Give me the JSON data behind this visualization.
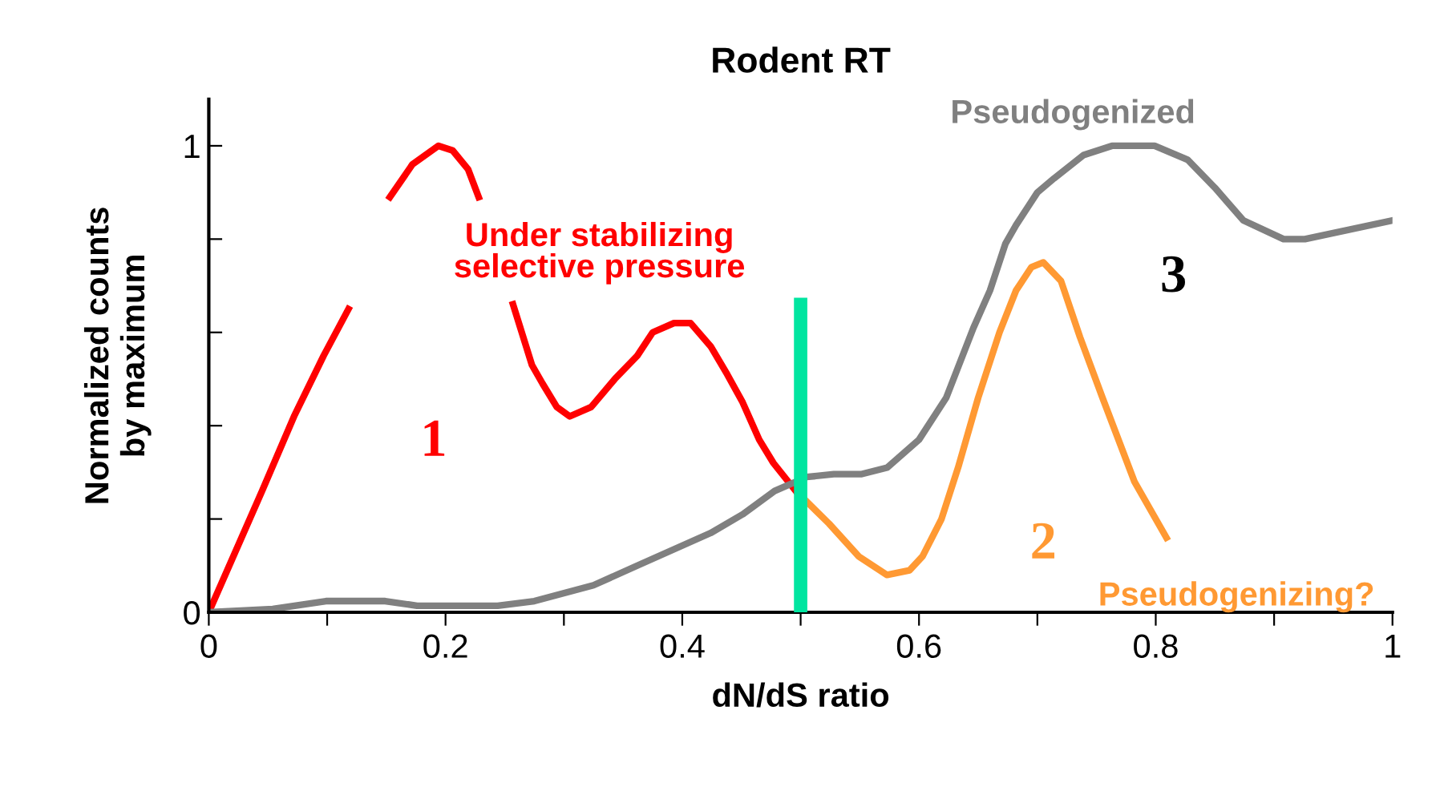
{
  "chart_data": {
    "type": "line",
    "title": "Rodent RT",
    "xlabel": "dN/dS ratio",
    "ylabel": "Normalized counts\nby maximum",
    "xlim": [
      0,
      1
    ],
    "ylim": [
      0,
      1.1
    ],
    "xticks": [
      0,
      {
        "value": 0.1,
        "label": null
      },
      0.2,
      {
        "value": 0.3,
        "label": null
      },
      0.4,
      {
        "value": 0.5,
        "label": null
      },
      0.6,
      {
        "value": 0.7,
        "label": null
      },
      0.8,
      {
        "value": 0.9,
        "label": null
      },
      1
    ],
    "yticks": [
      0,
      {
        "value": 0.2,
        "label": null
      },
      {
        "value": 0.4,
        "label": null
      },
      {
        "value": 0.6,
        "label": null
      },
      {
        "value": 0.8,
        "label": null
      },
      1
    ],
    "grid": false,
    "legend": false,
    "series": [
      {
        "name": "Under stabilizing\nselective pressure",
        "color": "#ff0000",
        "x": [
          0,
          0.045,
          0.072,
          0.097,
          0.118,
          0.135,
          0.153,
          0.172,
          0.194,
          0.206,
          0.219,
          0.228,
          0.24,
          0.257,
          0.273,
          0.282,
          0.294,
          0.305,
          0.323,
          0.343,
          0.362,
          0.375,
          0.393,
          0.407,
          0.424,
          0.438,
          0.451,
          0.465,
          0.477,
          0.499
        ],
        "values": [
          0,
          0.26,
          0.42,
          0.55,
          0.65,
          null,
          0.89,
          0.96,
          1.0,
          0.99,
          0.95,
          0.89,
          null,
          0.66,
          0.53,
          0.49,
          0.44,
          0.42,
          0.44,
          0.5,
          0.55,
          0.6,
          0.62,
          0.62,
          0.57,
          0.51,
          0.45,
          0.37,
          0.32,
          0.25
        ]
      },
      {
        "name": "Pseudogenizing?",
        "color": "#ff9933",
        "x": [
          0.504,
          0.524,
          0.549,
          0.573,
          0.592,
          0.603,
          0.619,
          0.633,
          0.65,
          0.668,
          0.682,
          0.695,
          0.705,
          0.72,
          0.736,
          0.755,
          0.782,
          0.809
        ],
        "values": [
          0.24,
          0.19,
          0.12,
          0.08,
          0.09,
          0.12,
          0.2,
          0.31,
          0.46,
          0.6,
          0.69,
          0.74,
          0.75,
          0.71,
          0.59,
          0.46,
          0.28,
          0.16
        ]
      },
      {
        "name": "Pseudogenized",
        "color": "#808080",
        "x": [
          0,
          0.054,
          0.099,
          0.149,
          0.176,
          0.244,
          0.275,
          0.325,
          0.362,
          0.424,
          0.451,
          0.478,
          0.505,
          0.528,
          0.551,
          0.573,
          0.6,
          0.623,
          0.646,
          0.66,
          0.673,
          0.682,
          0.7,
          0.714,
          0.739,
          0.763,
          0.799,
          0.827,
          0.85,
          0.874,
          0.908,
          0.926,
          1.0
        ],
        "values": [
          0,
          0.007,
          0.024,
          0.024,
          0.014,
          0.014,
          0.024,
          0.058,
          0.1,
          0.17,
          0.21,
          0.26,
          0.29,
          0.296,
          0.296,
          0.31,
          0.37,
          0.46,
          0.61,
          0.69,
          0.79,
          0.83,
          0.9,
          0.93,
          0.98,
          1.0,
          1.0,
          0.97,
          0.91,
          0.84,
          0.8,
          0.8,
          0.84
        ]
      },
      {
        "color": "#00e5a0",
        "x": [
          0.5,
          0.5
        ],
        "values": [
          0,
          0.66
        ]
      }
    ],
    "annotations": [
      "1",
      "2",
      "3"
    ]
  }
}
